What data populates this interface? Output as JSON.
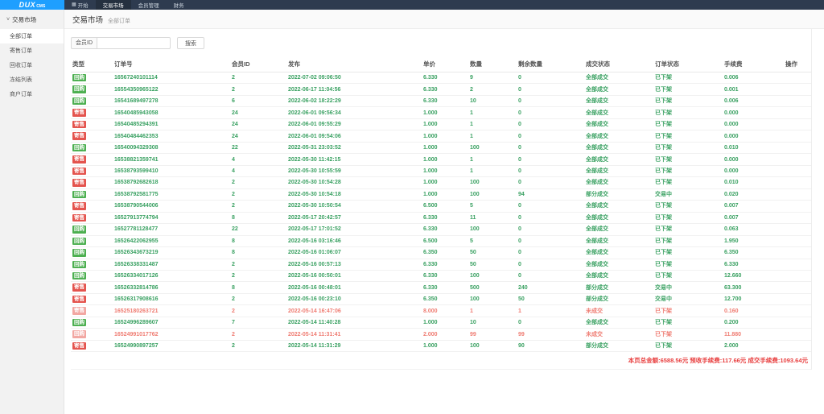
{
  "brand": {
    "logo": "DUX",
    "logo_sub": "CMS"
  },
  "nav": {
    "items": [
      {
        "id": "home",
        "label": "开始",
        "icon": "grid-icon",
        "active": false
      },
      {
        "id": "market",
        "label": "交易市场",
        "active": true
      },
      {
        "id": "members",
        "label": "会员管理",
        "active": false
      },
      {
        "id": "finance",
        "label": "财务",
        "active": false
      }
    ]
  },
  "sidebar": {
    "header": "交易市场",
    "items": [
      {
        "id": "all-orders",
        "label": "全部订单",
        "active": true
      },
      {
        "id": "consign-orders",
        "label": "寄售订单",
        "active": false
      },
      {
        "id": "recycle-orders",
        "label": "回收订单",
        "active": false
      },
      {
        "id": "frozen-list",
        "label": "冻结列表",
        "active": false
      },
      {
        "id": "merchant-orders",
        "label": "商户订单",
        "active": false
      }
    ]
  },
  "breadcrumb": {
    "title": "交易市场",
    "sub": "全部订单"
  },
  "search": {
    "addon_label": "会员ID",
    "input_value": "",
    "button_label": "搜索"
  },
  "table": {
    "columns": [
      "类型",
      "订单号",
      "会员ID",
      "发布",
      "单价",
      "数量",
      "剩余数量",
      "成交状态",
      "订单状态",
      "手续费",
      "操作"
    ],
    "rows": [
      {
        "type": "回购",
        "type_color": "green",
        "order_no": "16567240101114",
        "member_id": "2",
        "published": "2022-07-02 09:06:50",
        "price": "6.330",
        "qty": "9",
        "remaining": "0",
        "deal_status": "全部成交",
        "order_status": "已下架",
        "fee": "0.006",
        "muted": false
      },
      {
        "type": "回购",
        "type_color": "green",
        "order_no": "16554350965122",
        "member_id": "2",
        "published": "2022-06-17 11:04:56",
        "price": "6.330",
        "qty": "2",
        "remaining": "0",
        "deal_status": "全部成交",
        "order_status": "已下架",
        "fee": "0.001",
        "muted": false
      },
      {
        "type": "回购",
        "type_color": "green",
        "order_no": "16541689497278",
        "member_id": "6",
        "published": "2022-06-02 18:22:29",
        "price": "6.330",
        "qty": "10",
        "remaining": "0",
        "deal_status": "全部成交",
        "order_status": "已下架",
        "fee": "0.006",
        "muted": false
      },
      {
        "type": "寄售",
        "type_color": "red",
        "order_no": "16540485943058",
        "member_id": "24",
        "published": "2022-06-01 09:56:34",
        "price": "1.000",
        "qty": "1",
        "remaining": "0",
        "deal_status": "全部成交",
        "order_status": "已下架",
        "fee": "0.000",
        "muted": false
      },
      {
        "type": "寄售",
        "type_color": "red",
        "order_no": "16540485294391",
        "member_id": "24",
        "published": "2022-06-01 09:55:29",
        "price": "1.000",
        "qty": "1",
        "remaining": "0",
        "deal_status": "全部成交",
        "order_status": "已下架",
        "fee": "0.000",
        "muted": false
      },
      {
        "type": "寄售",
        "type_color": "red",
        "order_no": "16540484462353",
        "member_id": "24",
        "published": "2022-06-01 09:54:06",
        "price": "1.000",
        "qty": "1",
        "remaining": "0",
        "deal_status": "全部成交",
        "order_status": "已下架",
        "fee": "0.000",
        "muted": false
      },
      {
        "type": "回购",
        "type_color": "green",
        "order_no": "16540094329308",
        "member_id": "22",
        "published": "2022-05-31 23:03:52",
        "price": "1.000",
        "qty": "100",
        "remaining": "0",
        "deal_status": "全部成交",
        "order_status": "已下架",
        "fee": "0.010",
        "muted": false
      },
      {
        "type": "寄售",
        "type_color": "red",
        "order_no": "16538821359741",
        "member_id": "4",
        "published": "2022-05-30 11:42:15",
        "price": "1.000",
        "qty": "1",
        "remaining": "0",
        "deal_status": "全部成交",
        "order_status": "已下架",
        "fee": "0.000",
        "muted": false
      },
      {
        "type": "寄售",
        "type_color": "red",
        "order_no": "16538793599410",
        "member_id": "4",
        "published": "2022-05-30 10:55:59",
        "price": "1.000",
        "qty": "1",
        "remaining": "0",
        "deal_status": "全部成交",
        "order_status": "已下架",
        "fee": "0.000",
        "muted": false
      },
      {
        "type": "寄售",
        "type_color": "red",
        "order_no": "16538792682618",
        "member_id": "2",
        "published": "2022-05-30 10:54:28",
        "price": "1.000",
        "qty": "100",
        "remaining": "0",
        "deal_status": "全部成交",
        "order_status": "已下架",
        "fee": "0.010",
        "muted": false
      },
      {
        "type": "回购",
        "type_color": "green",
        "order_no": "16538792581775",
        "member_id": "2",
        "published": "2022-05-30 10:54:18",
        "price": "1.000",
        "qty": "100",
        "remaining": "94",
        "deal_status": "部分成交",
        "order_status": "交易中",
        "fee": "0.020",
        "muted": false
      },
      {
        "type": "寄售",
        "type_color": "red",
        "order_no": "16538790544006",
        "member_id": "2",
        "published": "2022-05-30 10:50:54",
        "price": "6.500",
        "qty": "5",
        "remaining": "0",
        "deal_status": "全部成交",
        "order_status": "已下架",
        "fee": "0.007",
        "muted": false
      },
      {
        "type": "寄售",
        "type_color": "red",
        "order_no": "16527913774794",
        "member_id": "8",
        "published": "2022-05-17 20:42:57",
        "price": "6.330",
        "qty": "11",
        "remaining": "0",
        "deal_status": "全部成交",
        "order_status": "已下架",
        "fee": "0.007",
        "muted": false
      },
      {
        "type": "回购",
        "type_color": "green",
        "order_no": "16527781128477",
        "member_id": "22",
        "published": "2022-05-17 17:01:52",
        "price": "6.330",
        "qty": "100",
        "remaining": "0",
        "deal_status": "全部成交",
        "order_status": "已下架",
        "fee": "0.063",
        "muted": false
      },
      {
        "type": "回购",
        "type_color": "green",
        "order_no": "16526422062955",
        "member_id": "8",
        "published": "2022-05-16 03:16:46",
        "price": "6.500",
        "qty": "5",
        "remaining": "0",
        "deal_status": "全部成交",
        "order_status": "已下架",
        "fee": "1.950",
        "muted": false
      },
      {
        "type": "回购",
        "type_color": "green",
        "order_no": "16526343673219",
        "member_id": "8",
        "published": "2022-05-16 01:06:07",
        "price": "6.350",
        "qty": "50",
        "remaining": "0",
        "deal_status": "全部成交",
        "order_status": "已下架",
        "fee": "6.350",
        "muted": false
      },
      {
        "type": "回购",
        "type_color": "green",
        "order_no": "16526338331487",
        "member_id": "2",
        "published": "2022-05-16 00:57:13",
        "price": "6.330",
        "qty": "50",
        "remaining": "0",
        "deal_status": "全部成交",
        "order_status": "已下架",
        "fee": "6.330",
        "muted": false
      },
      {
        "type": "回购",
        "type_color": "green",
        "order_no": "16526334017126",
        "member_id": "2",
        "published": "2022-05-16 00:50:01",
        "price": "6.330",
        "qty": "100",
        "remaining": "0",
        "deal_status": "全部成交",
        "order_status": "已下架",
        "fee": "12.660",
        "muted": false
      },
      {
        "type": "寄售",
        "type_color": "red",
        "order_no": "16526332814786",
        "member_id": "8",
        "published": "2022-05-16 00:48:01",
        "price": "6.330",
        "qty": "500",
        "remaining": "240",
        "deal_status": "部分成交",
        "order_status": "交易中",
        "fee": "63.300",
        "muted": false
      },
      {
        "type": "寄售",
        "type_color": "red",
        "order_no": "16526317908616",
        "member_id": "2",
        "published": "2022-05-16 00:23:10",
        "price": "6.350",
        "qty": "100",
        "remaining": "50",
        "deal_status": "部分成交",
        "order_status": "交易中",
        "fee": "12.700",
        "muted": false
      },
      {
        "type": "寄售",
        "type_color": "muted",
        "order_no": "16525180263721",
        "member_id": "2",
        "published": "2022-05-14 16:47:06",
        "price": "8.000",
        "qty": "1",
        "remaining": "1",
        "deal_status": "未成交",
        "order_status": "已下架",
        "fee": "0.160",
        "muted": true
      },
      {
        "type": "回购",
        "type_color": "green",
        "order_no": "16524996289607",
        "member_id": "7",
        "published": "2022-05-14 11:40:28",
        "price": "1.000",
        "qty": "10",
        "remaining": "0",
        "deal_status": "全部成交",
        "order_status": "已下架",
        "fee": "0.200",
        "muted": false
      },
      {
        "type": "回购",
        "type_color": "muted",
        "order_no": "16524991017762",
        "member_id": "2",
        "published": "2022-05-14 11:31:41",
        "price": "2.000",
        "qty": "99",
        "remaining": "99",
        "deal_status": "未成交",
        "order_status": "已下架",
        "fee": "11.880",
        "muted": true
      },
      {
        "type": "寄售",
        "type_color": "red",
        "order_no": "16524990897257",
        "member_id": "2",
        "published": "2022-05-14 11:31:29",
        "price": "1.000",
        "qty": "100",
        "remaining": "90",
        "deal_status": "部分成交",
        "order_status": "已下架",
        "fee": "2.000",
        "muted": false
      }
    ]
  },
  "footer": {
    "summary": "本页总金额:6588.56元 预收手续费:117.66元 成交手续费:1093.64元"
  },
  "colors": {
    "brand_blue": "#1E9FFF",
    "nav_dark": "#2E3B4F",
    "badge_green": "#4CAF50",
    "badge_red": "#E4544E",
    "badge_muted": "#F2A7A2",
    "text_green": "#3AA162",
    "text_red": "#EF7C72",
    "summary_red": "#E83E3E"
  }
}
